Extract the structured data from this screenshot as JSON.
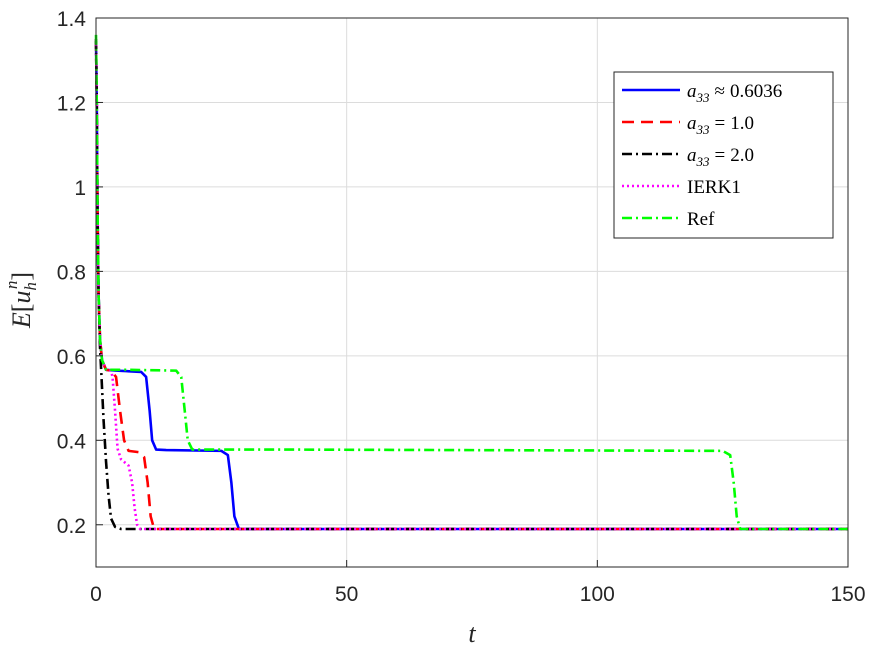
{
  "chart_data": {
    "type": "line",
    "xlabel": "t",
    "ylabel": "E[u_h^n]",
    "ylabel_parts": {
      "base": "E",
      "open": "[",
      "var": "u",
      "sub": "h",
      "sup": "n",
      "close": "]"
    },
    "xlim": [
      0,
      150
    ],
    "ylim": [
      0.1,
      1.4
    ],
    "xticks": [
      0,
      50,
      100,
      150
    ],
    "xtick_labels": [
      "0",
      "50",
      "100",
      "150"
    ],
    "yticks": [
      0.2,
      0.4,
      0.6,
      0.8,
      1.0,
      1.2,
      1.4
    ],
    "ytick_labels": [
      "0.2",
      "0.4",
      "0.6",
      "0.8",
      "1",
      "1.2",
      "1.4"
    ],
    "grid": true,
    "legend_position": "top-right",
    "series": [
      {
        "name": "a_33 ≈ 0.6036",
        "legend": {
          "var": "a",
          "sub": "33",
          "rel": "≈",
          "val": "0.6036"
        },
        "color": "#0000ff",
        "dash": "solid",
        "x": [
          0,
          0.15,
          0.3,
          0.5,
          0.8,
          1.2,
          2,
          4,
          9,
          10,
          10.7,
          11.2,
          12,
          14,
          25,
          26.3,
          27.0,
          27.6,
          28.5,
          40,
          150
        ],
        "y": [
          1.35,
          1.2,
          0.95,
          0.75,
          0.64,
          0.59,
          0.567,
          0.565,
          0.562,
          0.55,
          0.47,
          0.4,
          0.378,
          0.377,
          0.375,
          0.365,
          0.3,
          0.22,
          0.19,
          0.19,
          0.19
        ]
      },
      {
        "name": "a_33 = 1.0",
        "legend": {
          "var": "a",
          "sub": "33",
          "rel": "=",
          "val": "1.0"
        },
        "color": "#ff0000",
        "dash": "dashed",
        "x": [
          0,
          0.15,
          0.3,
          0.5,
          0.8,
          1.2,
          2,
          3,
          4.0,
          4.8,
          5.6,
          6.5,
          8.5,
          9.6,
          10.3,
          10.9,
          11.6,
          20,
          150
        ],
        "y": [
          1.35,
          1.2,
          0.95,
          0.75,
          0.64,
          0.59,
          0.567,
          0.565,
          0.55,
          0.47,
          0.4,
          0.375,
          0.372,
          0.36,
          0.3,
          0.22,
          0.19,
          0.19,
          0.19
        ]
      },
      {
        "name": "a_33 = 2.0",
        "legend": {
          "var": "a",
          "sub": "33",
          "rel": "=",
          "val": "2.0"
        },
        "color": "#000000",
        "dash": "dashdot",
        "x": [
          0,
          0.15,
          0.3,
          0.5,
          0.8,
          1.1,
          1.5,
          2.0,
          2.5,
          3.0,
          3.8,
          5,
          150
        ],
        "y": [
          1.35,
          1.2,
          0.95,
          0.75,
          0.62,
          0.55,
          0.45,
          0.35,
          0.27,
          0.215,
          0.195,
          0.19,
          0.19
        ]
      },
      {
        "name": "IERK1",
        "legend": {
          "var": "",
          "sub": "",
          "rel": "",
          "val": "IERK1"
        },
        "color": "#ff00ff",
        "dash": "dotted",
        "x": [
          0,
          0.15,
          0.3,
          0.5,
          0.8,
          1.2,
          2,
          3,
          3.3,
          3.8,
          4.3,
          5.0,
          6.5,
          7.2,
          7.7,
          8.2,
          8.8,
          12,
          150
        ],
        "y": [
          1.35,
          1.2,
          0.95,
          0.75,
          0.64,
          0.59,
          0.567,
          0.565,
          0.55,
          0.47,
          0.38,
          0.355,
          0.34,
          0.3,
          0.24,
          0.2,
          0.19,
          0.19,
          0.19
        ]
      },
      {
        "name": "Ref",
        "legend": {
          "var": "",
          "sub": "",
          "rel": "",
          "val": "Ref"
        },
        "color": "#00ff00",
        "dash": "dashdot",
        "x": [
          0,
          0.15,
          0.3,
          0.5,
          0.8,
          1.2,
          2,
          6,
          16,
          17,
          17.7,
          18.3,
          19.2,
          40,
          125,
          126.5,
          127.2,
          127.8,
          128.5,
          150
        ],
        "y": [
          1.36,
          1.2,
          0.95,
          0.75,
          0.64,
          0.59,
          0.567,
          0.567,
          0.565,
          0.55,
          0.47,
          0.4,
          0.378,
          0.378,
          0.375,
          0.365,
          0.3,
          0.22,
          0.19,
          0.19
        ]
      }
    ]
  }
}
